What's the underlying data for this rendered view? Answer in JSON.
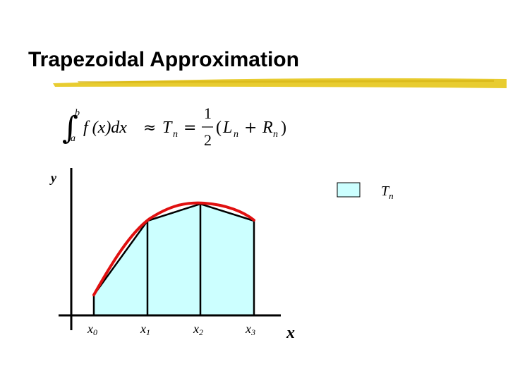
{
  "slide": {
    "title": "Trapezoidal Approximation"
  },
  "formula": {
    "integral_upper": "b",
    "integral_lower": "a",
    "integrand": "f (x)dx",
    "approx": "≈",
    "T": "T",
    "T_sub": "n",
    "equals": "=",
    "frac_num": "1",
    "frac_den": "2",
    "paren_open": "(",
    "L": "L",
    "L_sub": "n",
    "plus": "+",
    "R": "R",
    "R_sub": "n",
    "paren_close": ")"
  },
  "graph": {
    "y_label": "y",
    "x_label": "x",
    "ticks": [
      {
        "base": "x",
        "sub": "0"
      },
      {
        "base": "x",
        "sub": "1"
      },
      {
        "base": "x",
        "sub": "2"
      },
      {
        "base": "x",
        "sub": "3"
      }
    ],
    "legend": {
      "base": "T",
      "sub": "n"
    },
    "colors": {
      "trap_fill": "#ccffff",
      "curve": "#e01010",
      "axis": "#000000",
      "title_underline": "#e6c619"
    }
  }
}
